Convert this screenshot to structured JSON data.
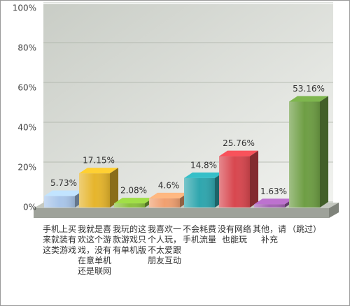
{
  "chart_data": {
    "type": "bar3d",
    "categories": [
      "手机上买来就装有这类游戏",
      "我就是喜欢这个游戏，没有在意单机还是联网",
      "我玩的这款游戏只有单机版",
      "我喜欢一个人玩，不太爱跟朋友互动",
      "不会耗费手机流量",
      "没有网络也能玩",
      "其他，请补充",
      "（跳过）"
    ],
    "values": [
      5.73,
      17.15,
      2.08,
      4.6,
      14.8,
      25.76,
      1.63,
      53.16
    ],
    "value_labels": [
      "5.73%",
      "17.15%",
      "2.08%",
      "4.6%",
      "14.8%",
      "25.76%",
      "1.63%",
      "53.16%"
    ],
    "colors": [
      "#a9c6ea",
      "#e6b52c",
      "#8cc23e",
      "#f0a070",
      "#2fa6ae",
      "#d8474f",
      "#a463b4",
      "#6e9e44"
    ],
    "ylim": [
      0,
      100
    ],
    "yticks": [
      {
        "value": 0,
        "label": "0%"
      },
      {
        "value": 20,
        "label": "20%"
      },
      {
        "value": 40,
        "label": "40%"
      },
      {
        "value": 60,
        "label": "60%"
      },
      {
        "value": 80,
        "label": "80%"
      },
      {
        "value": 100,
        "label": "100%"
      }
    ],
    "grid": true
  }
}
